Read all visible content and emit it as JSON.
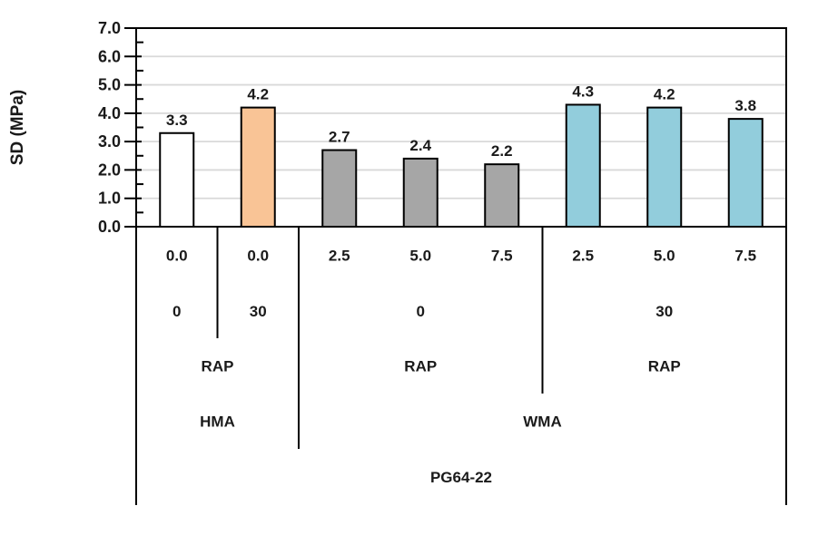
{
  "chart_data": {
    "type": "bar",
    "title": "",
    "ylabel": "SD (MPa)",
    "ylim": [
      0.0,
      7.0
    ],
    "ytick_step": 1.0,
    "yminor_tick_step": 0.5,
    "ytick_labels": [
      "0.0",
      "1.0",
      "2.0",
      "3.0",
      "4.0",
      "5.0",
      "6.0",
      "7.0"
    ],
    "grid": "horizontal-major",
    "legend": "none",
    "values": [
      3.3,
      4.2,
      2.7,
      2.4,
      2.2,
      4.3,
      4.2,
      3.8
    ],
    "bar_value_labels": [
      "3.3",
      "4.2",
      "2.7",
      "2.4",
      "2.2",
      "4.3",
      "4.2",
      "3.8"
    ],
    "bar_colors": [
      "#FFFFFF",
      "#F9C496",
      "#A6A6A6",
      "#A6A6A6",
      "#A6A6A6",
      "#92CDDC",
      "#92CDDC",
      "#92CDDC"
    ],
    "bar_border_color": "#000000",
    "gridline_color": "#D9D9D9",
    "axis_color": "#000000",
    "text_color": "#1A1A1A",
    "category_levels": [
      {
        "name": "rap-binder-percent",
        "cells": [
          {
            "label": "0.0",
            "start": 0,
            "end": 0
          },
          {
            "label": "0.0",
            "start": 1,
            "end": 1
          },
          {
            "label": "2.5",
            "start": 2,
            "end": 2
          },
          {
            "label": "5.0",
            "start": 3,
            "end": 3
          },
          {
            "label": "7.5",
            "start": 4,
            "end": 4
          },
          {
            "label": "2.5",
            "start": 5,
            "end": 5
          },
          {
            "label": "5.0",
            "start": 6,
            "end": 6
          },
          {
            "label": "7.5",
            "start": 7,
            "end": 7
          }
        ]
      },
      {
        "name": "additive-percent",
        "cells": [
          {
            "label": "0",
            "start": 0,
            "end": 0
          },
          {
            "label": "30",
            "start": 1,
            "end": 1
          },
          {
            "label": "0",
            "start": 2,
            "end": 4
          },
          {
            "label": "30",
            "start": 5,
            "end": 7
          }
        ]
      },
      {
        "name": "rap-group",
        "cells": [
          {
            "label": "RAP",
            "start": 0,
            "end": 1
          },
          {
            "label": "RAP",
            "start": 2,
            "end": 4
          },
          {
            "label": "RAP",
            "start": 5,
            "end": 7
          }
        ]
      },
      {
        "name": "mix-type",
        "cells": [
          {
            "label": "HMA",
            "start": 0,
            "end": 1
          },
          {
            "label": "WMA",
            "start": 2,
            "end": 7
          }
        ]
      },
      {
        "name": "binder-grade",
        "cells": [
          {
            "label": "PG64-22",
            "start": 0,
            "end": 7
          }
        ]
      }
    ]
  }
}
